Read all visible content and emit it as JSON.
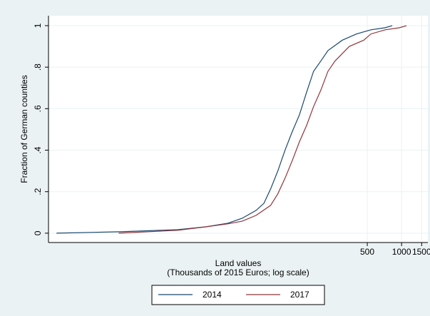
{
  "chart_data": {
    "type": "line",
    "y_label": "Fraction of German counties",
    "x_label": [
      "Land values",
      "(Thousands of 2015 Euros; log scale)"
    ],
    "series": [
      {
        "name": "2014",
        "color": "#1a476f",
        "x": [
          0.94,
          3.4,
          10.9,
          19.4,
          29.9,
          40,
          53,
          62,
          71,
          82,
          95,
          110,
          127,
          147,
          169,
          196,
          226,
          302,
          403,
          538,
          717,
          829
        ],
        "values": [
          0,
          0.007,
          0.017,
          0.031,
          0.048,
          0.072,
          0.11,
          0.144,
          0.213,
          0.299,
          0.4,
          0.49,
          0.57,
          0.68,
          0.78,
          0.83,
          0.88,
          0.93,
          0.96,
          0.98,
          0.99,
          1.0
        ]
      },
      {
        "name": "2017",
        "color": "#90353b",
        "x": [
          3.3,
          10.9,
          19.4,
          29.9,
          40,
          53,
          71,
          82,
          95,
          110,
          127,
          147,
          169,
          196,
          226,
          261,
          348,
          466,
          538,
          717,
          957,
          1106
        ],
        "values": [
          0,
          0.014,
          0.031,
          0.045,
          0.058,
          0.086,
          0.134,
          0.189,
          0.265,
          0.35,
          0.44,
          0.52,
          0.61,
          0.69,
          0.78,
          0.83,
          0.9,
          0.93,
          0.96,
          0.98,
          0.99,
          1.0
        ]
      }
    ],
    "xlim": [
      0.8,
      1700
    ],
    "xticks": [
      500,
      1000,
      1500
    ],
    "xscale": "log",
    "ylim": [
      -0.045,
      1.048
    ],
    "yticks": [
      0,
      {
        "value": 0.2,
        "label": ".2"
      },
      {
        "value": 0.4,
        "label": ".4"
      },
      {
        "value": 0.6,
        "label": ".6"
      },
      {
        "value": 0.8,
        "label": ".8"
      },
      1
    ],
    "grid": true,
    "legend": "bottom"
  }
}
